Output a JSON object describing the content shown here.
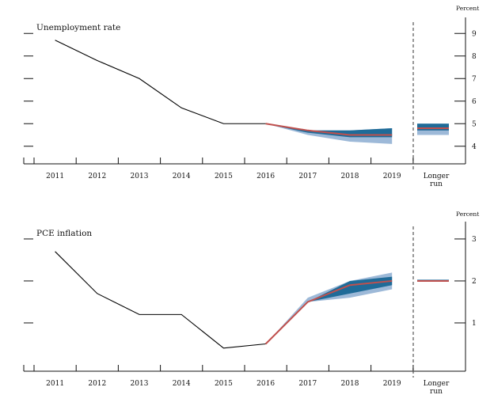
{
  "chart_data": [
    {
      "type": "line",
      "title": "Unemployment rate",
      "ylabel": "Percent",
      "ylim": [
        3.5,
        9.5
      ],
      "yticks": [
        "4",
        "5",
        "6",
        "7",
        "8",
        "9"
      ],
      "categories": [
        "2011",
        "2012",
        "2013",
        "2014",
        "2015",
        "2016",
        "2017",
        "2018",
        "2019"
      ],
      "extra_category": [
        "Longer",
        "run"
      ],
      "history": {
        "x": [
          2011,
          2012,
          2013,
          2014,
          2015,
          2016
        ],
        "values": [
          8.7,
          7.8,
          7.0,
          5.7,
          5.0,
          5.0
        ]
      },
      "median": {
        "x": [
          2016,
          2017,
          2018,
          2019
        ],
        "values": [
          5.0,
          4.7,
          4.5,
          4.5
        ]
      },
      "central_tendency": {
        "x": [
          2016,
          2017,
          2018,
          2019
        ],
        "low": [
          5.0,
          4.6,
          4.4,
          4.4
        ],
        "high": [
          5.0,
          4.7,
          4.7,
          4.8
        ]
      },
      "range": {
        "x": [
          2016,
          2017,
          2018,
          2019
        ],
        "low": [
          5.0,
          4.5,
          4.2,
          4.1
        ],
        "high": [
          5.0,
          4.7,
          4.7,
          4.8
        ]
      },
      "longer_run": {
        "median": 4.8,
        "ct_low": 4.7,
        "ct_high": 5.0,
        "range_low": 4.5,
        "range_high": 5.0
      },
      "colors": {
        "history": "#000000",
        "median": "#c0504d",
        "central_tendency": "#1f6b98",
        "range": "#9db9d8",
        "divider": "#555555"
      }
    },
    {
      "type": "line",
      "title": "PCE inflation",
      "ylabel": "Percent",
      "ylim": [
        0.0,
        3.3
      ],
      "yticks": [
        "1",
        "2",
        "3"
      ],
      "categories": [
        "2011",
        "2012",
        "2013",
        "2014",
        "2015",
        "2016",
        "2017",
        "2018",
        "2019"
      ],
      "extra_category": [
        "Longer",
        "run"
      ],
      "history": {
        "x": [
          2011,
          2012,
          2013,
          2014,
          2015,
          2016
        ],
        "values": [
          2.7,
          1.7,
          1.2,
          1.2,
          0.4,
          0.5
        ]
      },
      "median": {
        "x": [
          2016,
          2017,
          2018,
          2019
        ],
        "values": [
          0.5,
          1.5,
          1.9,
          2.0
        ]
      },
      "central_tendency": {
        "x": [
          2016,
          2017,
          2018,
          2019
        ],
        "low": [
          0.5,
          1.5,
          1.7,
          1.9
        ],
        "high": [
          0.5,
          1.5,
          2.0,
          2.1
        ]
      },
      "range": {
        "x": [
          2016,
          2017,
          2018,
          2019
        ],
        "low": [
          0.5,
          1.5,
          1.6,
          1.8
        ],
        "high": [
          0.5,
          1.6,
          2.0,
          2.2
        ]
      },
      "longer_run": {
        "median": 2.0,
        "ct_low": 2.0,
        "ct_high": 2.0,
        "range_low": 2.0,
        "range_high": 2.0
      },
      "colors": {
        "history": "#000000",
        "median": "#c0504d",
        "central_tendency": "#1f6b98",
        "range": "#9db9d8",
        "divider": "#555555"
      }
    }
  ]
}
